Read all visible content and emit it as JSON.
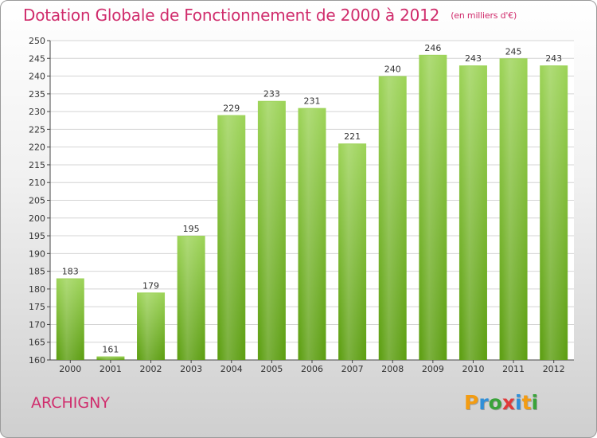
{
  "header": {
    "title": "Dotation Globale de Fonctionnement de 2000 à 2012",
    "unit": "(en milliers d'€)"
  },
  "place": "ARCHIGNY",
  "logo": {
    "text": "Proxiti",
    "letters": [
      {
        "ch": "P",
        "color": "#f39c12"
      },
      {
        "ch": "r",
        "color": "#2f8fd8"
      },
      {
        "ch": "o",
        "color": "#3aa33a"
      },
      {
        "ch": "x",
        "color": "#e03a3a"
      },
      {
        "ch": "i",
        "color": "#2f8fd8"
      },
      {
        "ch": "t",
        "color": "#f39c12"
      },
      {
        "ch": "i",
        "color": "#3aa33a"
      }
    ]
  },
  "colors": {
    "title": "#d02c6c",
    "bar_top": "#9ed45a",
    "bar_bottom": "#5e9f14",
    "grid": "#d4d4d4"
  },
  "chart_data": {
    "type": "bar",
    "title": "Dotation Globale de Fonctionnement de 2000 à 2012",
    "unit": "(en milliers d'€)",
    "categories": [
      "2000",
      "2001",
      "2002",
      "2003",
      "2004",
      "2005",
      "2006",
      "2007",
      "2008",
      "2009",
      "2010",
      "2011",
      "2012"
    ],
    "values": [
      183,
      161,
      179,
      195,
      229,
      233,
      231,
      221,
      240,
      246,
      243,
      245,
      243
    ],
    "ylim": [
      160,
      250
    ],
    "ytick_step": 5,
    "grid": true
  }
}
